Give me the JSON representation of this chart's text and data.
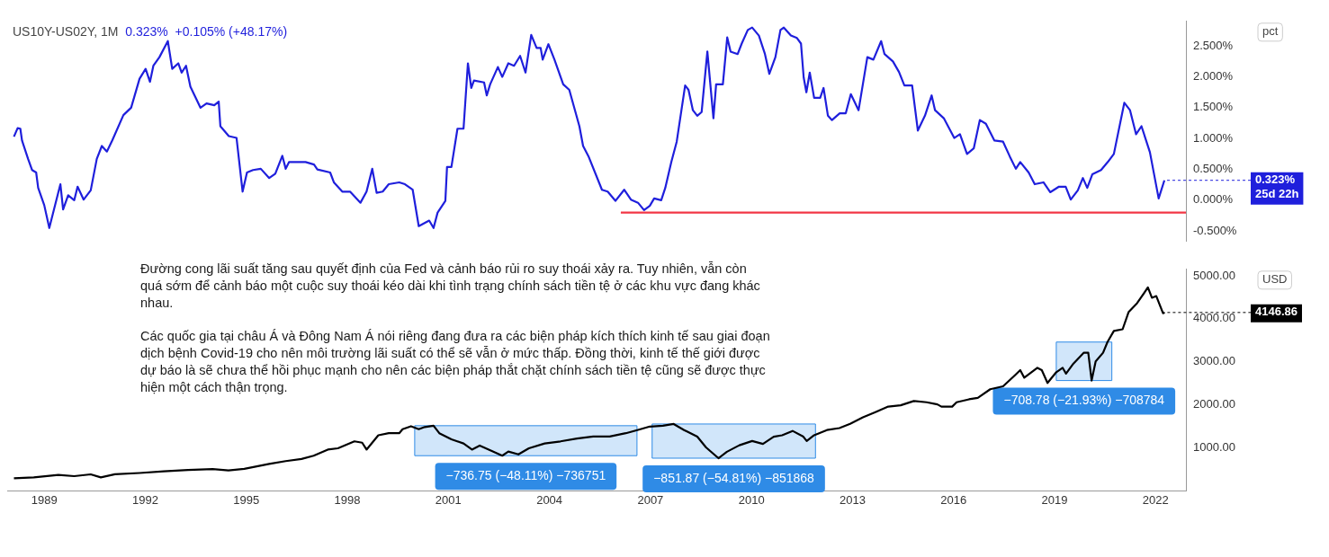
{
  "chart_data": [
    {
      "type": "line",
      "title": "US10Y-US02Y, 1M",
      "subtitle": "0.323%  +0.105% (+48.17%)",
      "ylabel": "pct",
      "xlim": [
        1987.9,
        2022.9
      ],
      "ylim": [
        -0.66,
        2.9
      ],
      "yticks": [
        {
          "value": 2.5,
          "label": "2.500%"
        },
        {
          "value": 2,
          "label": "2.000%"
        },
        {
          "value": 1.5,
          "label": "1.500%"
        },
        {
          "value": 1,
          "label": "1.000%"
        },
        {
          "value": 0.5,
          "label": "0.500%"
        },
        {
          "value": 0,
          "label": "0.000%"
        },
        {
          "value": -0.5,
          "label": "-0.500%"
        }
      ],
      "tick_labels": "y",
      "series": [
        {
          "color": "#1f1fdc",
          "x": [
            1988.1,
            1988.21,
            1988.29,
            1988.34,
            1988.52,
            1988.64,
            1988.76,
            1988.82,
            1989.0,
            1989.15,
            1989.28,
            1989.48,
            1989.56,
            1989.71,
            1989.89,
            1989.99,
            1990.17,
            1990.38,
            1990.56,
            1990.71,
            1990.86,
            1991.02,
            1991.35,
            1991.58,
            1991.83,
            1992.01,
            1992.14,
            1992.24,
            1992.42,
            1992.67,
            1992.8,
            1992.98,
            1993.08,
            1993.21,
            1993.34,
            1993.64,
            1993.82,
            1994.05,
            1994.18,
            1994.23,
            1994.48,
            1994.71,
            1994.89,
            1995.02,
            1995.2,
            1995.43,
            1995.68,
            1995.86,
            1996.07,
            1996.17,
            1996.27,
            1996.76,
            1997.01,
            1997.11,
            1997.49,
            1997.6,
            1997.85,
            1998.08,
            1998.39,
            1998.57,
            1998.74,
            1998.87,
            1999.05,
            1999.23,
            1999.54,
            1999.71,
            1999.94,
            2000.12,
            2000.43,
            2000.56,
            2000.68,
            2000.91,
            2000.96,
            2001.09,
            2001.27,
            2001.45,
            2001.58,
            2001.68,
            2001.76,
            2002.06,
            2002.14,
            2002.24,
            2002.47,
            2002.6,
            2002.78,
            2002.95,
            2003.13,
            2003.29,
            2003.46,
            2003.62,
            2003.74,
            2003.8,
            2003.97,
            2004.15,
            2004.41,
            2004.59,
            2004.89,
            2005.0,
            2005.17,
            2005.56,
            2005.73,
            2005.96,
            2006.22,
            2006.42,
            2006.63,
            2006.81,
            2006.98,
            2007.11,
            2007.32,
            2007.44,
            2007.62,
            2007.78,
            2008.03,
            2008.13,
            2008.26,
            2008.39,
            2008.52,
            2008.69,
            2008.87,
            2008.95,
            2009.15,
            2009.28,
            2009.38,
            2009.59,
            2009.71,
            2009.89,
            2010.02,
            2010.22,
            2010.4,
            2010.53,
            2010.71,
            2010.86,
            2010.96,
            2011.17,
            2011.35,
            2011.47,
            2011.55,
            2011.63,
            2011.73,
            2011.86,
            2012.04,
            2012.14,
            2012.27,
            2012.39,
            2012.62,
            2012.8,
            2012.95,
            2013.18,
            2013.44,
            2013.62,
            2013.85,
            2013.95,
            2014.2,
            2014.38,
            2014.54,
            2014.77,
            2014.94,
            2015.15,
            2015.35,
            2015.45,
            2015.71,
            2016.02,
            2016.19,
            2016.4,
            2016.6,
            2016.78,
            2016.96,
            2017.21,
            2017.47,
            2017.67,
            2017.85,
            2017.98,
            2018.23,
            2018.41,
            2018.67,
            2018.87,
            2019.13,
            2019.33,
            2019.48,
            2019.69,
            2019.84,
            2019.97,
            2020.12,
            2020.38,
            2020.58,
            2020.76,
            2021.07,
            2021.24,
            2021.42,
            2021.58,
            2021.83,
            2022.09,
            2022.26
          ],
          "values": [
            1.03,
            1.17,
            1.16,
            0.97,
            0.67,
            0.49,
            0.45,
            0.2,
            -0.08,
            -0.45,
            -0.17,
            0.26,
            -0.15,
            0.08,
            0.0,
            0.22,
            0.01,
            0.16,
            0.67,
            0.88,
            0.79,
            0.97,
            1.38,
            1.5,
            1.97,
            2.13,
            1.92,
            2.18,
            2.32,
            2.58,
            2.13,
            2.22,
            2.07,
            2.18,
            1.84,
            1.5,
            1.57,
            1.54,
            1.6,
            1.2,
            1.04,
            1.01,
            0.14,
            0.45,
            0.49,
            0.51,
            0.36,
            0.43,
            0.72,
            0.51,
            0.62,
            0.62,
            0.58,
            0.5,
            0.45,
            0.29,
            0.14,
            0.14,
            -0.04,
            0.14,
            0.51,
            0.12,
            0.14,
            0.26,
            0.29,
            0.26,
            0.17,
            -0.42,
            -0.33,
            -0.45,
            -0.2,
            -0.01,
            0.54,
            0.54,
            1.16,
            1.16,
            2.22,
            1.82,
            1.94,
            1.91,
            1.7,
            1.88,
            2.16,
            2.0,
            2.22,
            2.18,
            2.34,
            2.07,
            2.68,
            2.47,
            2.47,
            2.28,
            2.53,
            2.28,
            1.88,
            1.79,
            1.2,
            0.88,
            0.7,
            0.17,
            0.14,
            -0.01,
            0.17,
            0.01,
            -0.04,
            -0.16,
            -0.09,
            0.03,
            0.0,
            0.2,
            0.62,
            0.95,
            1.86,
            1.79,
            1.46,
            1.37,
            1.43,
            2.41,
            1.33,
            1.88,
            1.88,
            2.64,
            2.41,
            2.37,
            2.54,
            2.76,
            2.8,
            2.67,
            2.37,
            2.05,
            2.32,
            2.76,
            2.8,
            2.67,
            2.63,
            2.54,
            1.99,
            1.75,
            2.07,
            1.66,
            1.66,
            1.82,
            1.37,
            1.3,
            1.41,
            1.41,
            1.72,
            1.46,
            2.32,
            2.28,
            2.58,
            2.37,
            2.25,
            2.08,
            1.86,
            1.86,
            1.13,
            1.37,
            1.7,
            1.46,
            1.33,
            1.01,
            1.07,
            0.75,
            0.84,
            1.3,
            1.24,
            0.97,
            0.95,
            0.71,
            0.51,
            0.62,
            0.45,
            0.26,
            0.29,
            0.13,
            0.22,
            0.22,
            0.01,
            0.16,
            0.36,
            0.2,
            0.42,
            0.49,
            0.62,
            0.75,
            1.58,
            1.46,
            1.07,
            1.2,
            0.78,
            0.03,
            0.323
          ]
        },
        {
          "color": "#f23645",
          "x": [
            2006.12,
            2022.9
          ],
          "values": [
            -0.2,
            -0.2
          ]
        }
      ],
      "annotations": [
        {
          "text": "0.323%\n25d 22h",
          "x": 2022.26,
          "y": 0.323
        }
      ]
    },
    {
      "type": "line",
      "ylabel": "USD",
      "xlim": [
        1987.9,
        2022.9
      ],
      "ylim": [
        0,
        5150
      ],
      "xticks": [
        1989,
        1992,
        1995,
        1998,
        2001,
        2004,
        2007,
        2010,
        2013,
        2016,
        2019,
        2022
      ],
      "yticks": [
        {
          "value": 1000,
          "label": "1000.00"
        },
        {
          "value": 2000,
          "label": "2000.00"
        },
        {
          "value": 3000,
          "label": "3000.00"
        },
        {
          "value": 4000,
          "label": "4000.00"
        },
        {
          "value": 5000,
          "label": "5000.00"
        }
      ],
      "series": [
        {
          "color": "#000000",
          "x": [
            1988.1,
            1988.69,
            1989.42,
            1989.89,
            1990.38,
            1990.68,
            1991.1,
            1991.83,
            1992.55,
            1993.27,
            1994.0,
            1994.47,
            1994.94,
            1995.68,
            1996.17,
            1996.64,
            1997.0,
            1997.42,
            1997.72,
            1998.21,
            1998.44,
            1998.57,
            1998.92,
            1999.23,
            1999.54,
            1999.64,
            1999.89,
            2000.12,
            2000.3,
            2000.56,
            2000.73,
            2001.09,
            2001.45,
            2001.7,
            2001.93,
            2002.29,
            2002.6,
            2002.78,
            2003.08,
            2003.39,
            2003.86,
            2004.33,
            2004.82,
            2005.3,
            2005.79,
            2006.27,
            2006.61,
            2006.98,
            2007.37,
            2007.69,
            2008.0,
            2008.39,
            2008.65,
            2009.02,
            2009.27,
            2009.64,
            2010.02,
            2010.34,
            2010.66,
            2010.91,
            2011.22,
            2011.54,
            2011.64,
            2011.86,
            2012.24,
            2012.61,
            2012.93,
            2013.31,
            2013.68,
            2014.06,
            2014.43,
            2014.82,
            2015.2,
            2015.52,
            2015.64,
            2015.96,
            2016.09,
            2016.46,
            2016.72,
            2017.09,
            2017.47,
            2017.85,
            2017.98,
            2018.1,
            2018.49,
            2018.62,
            2018.79,
            2019.05,
            2019.24,
            2019.34,
            2019.56,
            2019.87,
            2020.0,
            2020.1,
            2020.22,
            2020.44,
            2020.57,
            2020.76,
            2021.02,
            2021.2,
            2021.45,
            2021.58,
            2021.77,
            2021.89,
            2022.02,
            2022.22,
            2022.27
          ],
          "values": [
            293,
            313,
            370,
            343,
            384,
            313,
            388,
            416,
            455,
            485,
            505,
            475,
            513,
            626,
            693,
            741,
            818,
            960,
            990,
            1151,
            1121,
            960,
            1293,
            1341,
            1341,
            1434,
            1503,
            1434,
            1485,
            1515,
            1341,
            1198,
            1103,
            960,
            1054,
            929,
            818,
            913,
            848,
            990,
            1103,
            1151,
            1218,
            1265,
            1265,
            1341,
            1414,
            1495,
            1515,
            1555,
            1414,
            1260,
            1010,
            760,
            909,
            1060,
            1160,
            1091,
            1260,
            1293,
            1394,
            1260,
            1159,
            1293,
            1414,
            1460,
            1559,
            1709,
            1830,
            1959,
            1990,
            2089,
            2060,
            2010,
            1959,
            1959,
            2060,
            2129,
            2161,
            2363,
            2430,
            2709,
            2808,
            2630,
            2860,
            2808,
            2509,
            2759,
            2860,
            2727,
            2959,
            3212,
            3212,
            2565,
            3010,
            3212,
            3460,
            3717,
            3757,
            4161,
            4363,
            4509,
            4729,
            4490,
            4529,
            4129,
            4146.86
          ]
        }
      ],
      "bands": [
        {
          "axis": "x",
          "from": 2000.0,
          "to": 2006.6,
          "label": "−736.75 (−48.11%) −736751",
          "color": "#2f8be6"
        },
        {
          "axis": "x",
          "from": 2007.05,
          "to": 2011.9,
          "label": "−851.87 (−54.81%) −851868",
          "color": "#2f8be6"
        },
        {
          "axis": "x",
          "from": 2019.05,
          "to": 2020.7,
          "label": "−708.78 (−21.93%) −708784",
          "color": "#2f8be6"
        }
      ],
      "annotations": [
        {
          "text": "4146.86",
          "x": 2022.27,
          "y": 4146.86
        },
        "Đường cong lãi suất tăng sau quyết định của Fed và cảnh báo rủi ro suy thoái xảy ra. Tuy nhiên, vẫn còn quá sớm để cảnh báo một cuộc suy thoái kéo dài khi tình trạng chính sách tiền tệ ở các khu vực đang khác nhau.",
        "Các quốc gia tại châu Á và Đông Nam Á nói riêng đang đưa ra các biện pháp kích thích kinh tế sau giai đoạn dịch bệnh Covid-19 cho nên môi trường lãi suất có thể sẽ vẫn ở mức thấp. Đồng thời, kinh tế thế giới được dự báo là sẽ chưa thể hồi phục mạnh cho nên các biện pháp thắt chặt chính sách tiền tệ cũng sẽ được thực hiện một cách thận trọng."
      ]
    }
  ]
}
